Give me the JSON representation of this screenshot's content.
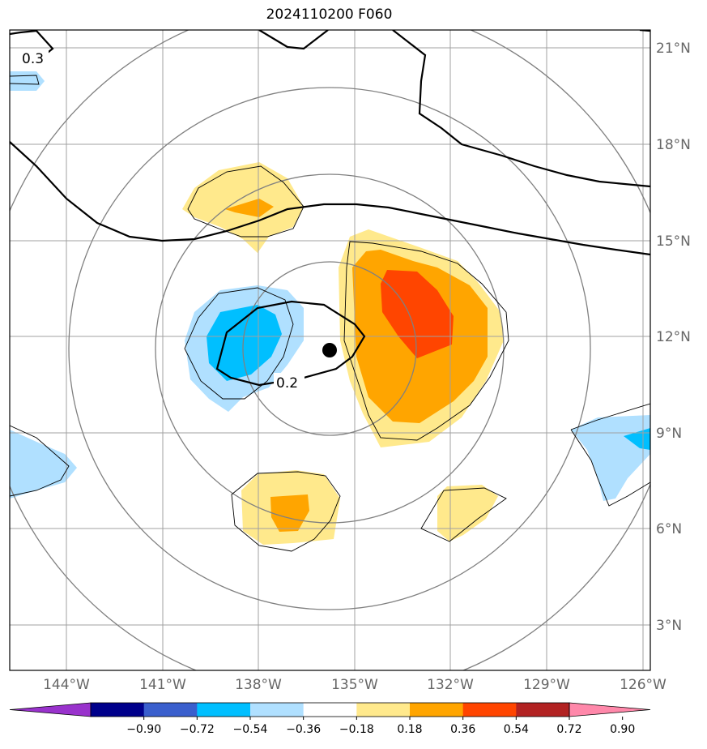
{
  "title": "2024110200 F060",
  "lat_ticks": [
    "3°N",
    "6°N",
    "9°N",
    "12°N",
    "15°N",
    "18°N",
    "21°N"
  ],
  "lon_ticks": [
    "144°W",
    "141°W",
    "138°W",
    "135°W",
    "132°W",
    "129°W",
    "126°W"
  ],
  "contour_labels": [
    "0.3",
    "0.2"
  ],
  "colorbar": {
    "ticks": [
      "−0.90",
      "−0.72",
      "−0.54",
      "−0.36",
      "−0.18",
      "0.18",
      "0.36",
      "0.54",
      "0.72",
      "0.90"
    ],
    "colors": [
      "#9932cc",
      "#00008b",
      "#3a5fcd",
      "#00bfff",
      "#b0e0ff",
      "#ffffff",
      "#ffe98c",
      "#ffa500",
      "#ff4500",
      "#b22222",
      "#ff88aa"
    ]
  },
  "center_marker": {
    "lon": "135.8°W",
    "lat": "11.6°N"
  }
}
